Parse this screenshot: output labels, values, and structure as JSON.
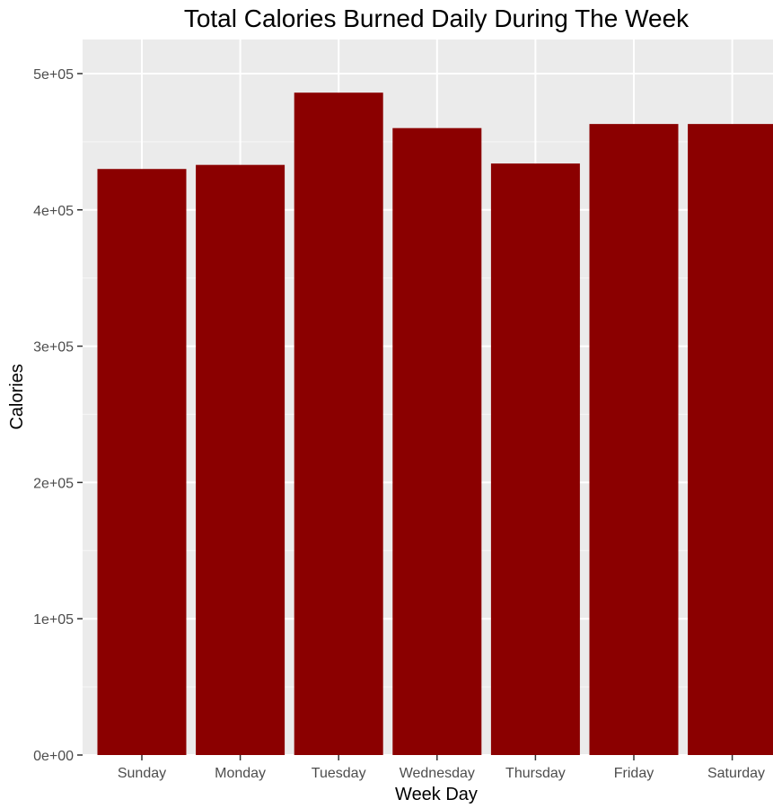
{
  "chart_data": {
    "type": "bar",
    "title": "Total Calories Burned Daily During The Week",
    "xlabel": "Week Day",
    "ylabel": "Calories",
    "categories": [
      "Sunday",
      "Monday",
      "Tuesday",
      "Wednesday",
      "Thursday",
      "Friday",
      "Saturday"
    ],
    "values": [
      430000,
      433000,
      486000,
      460000,
      434000,
      463000,
      463000
    ],
    "ylim": [
      0,
      525000
    ],
    "yticks": [
      0,
      100000,
      200000,
      300000,
      400000,
      500000
    ],
    "ytick_labels": [
      "0e+00",
      "1e+05",
      "2e+05",
      "3e+05",
      "4e+05",
      "5e+05"
    ],
    "grid": true,
    "legend": "none",
    "colors": {
      "bar": "#8b0000",
      "panel": "#ebebeb",
      "grid_major": "#ffffff",
      "grid_minor": "#f5f5f5",
      "tick_label": "#4d4d4d",
      "tick_mark": "#333333",
      "text": "#000000"
    }
  }
}
